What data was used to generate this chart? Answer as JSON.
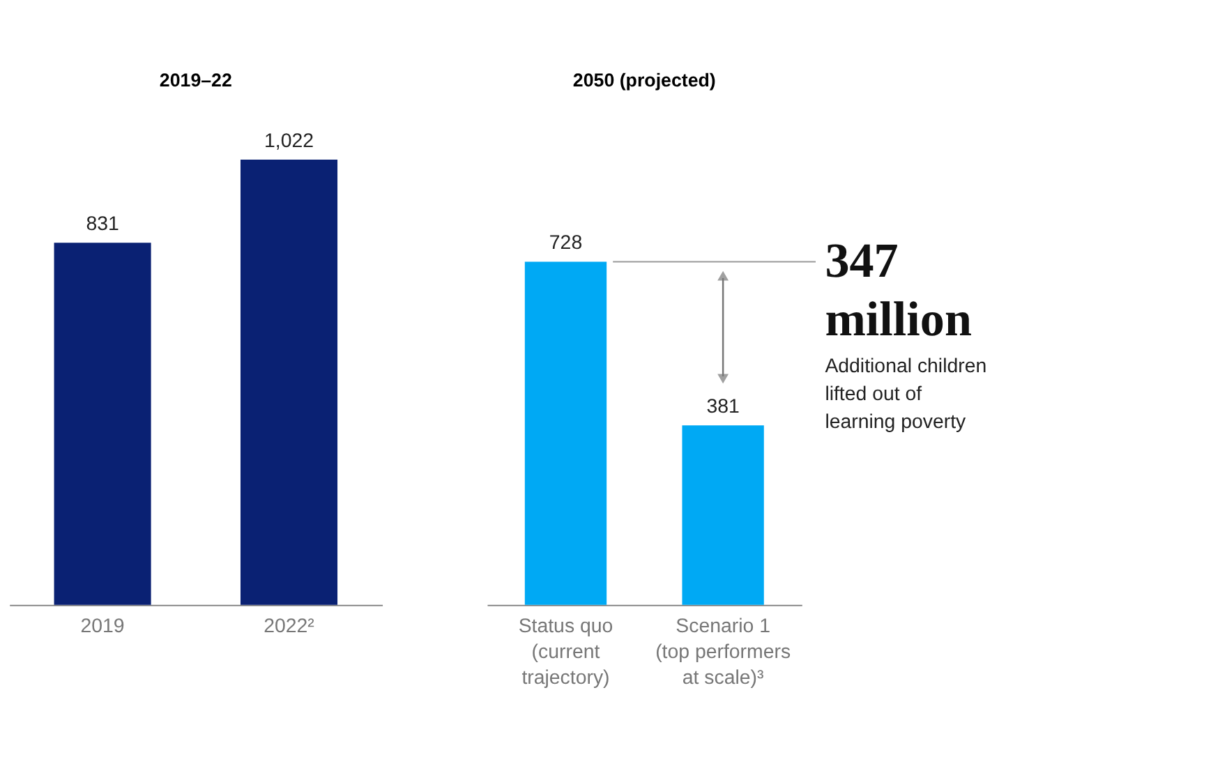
{
  "chart_data": [
    {
      "type": "bar",
      "title": "2019–22",
      "categories": [
        "2019",
        "2022²"
      ],
      "values": [
        831,
        1022
      ],
      "value_labels": [
        "831",
        "1,022"
      ],
      "colors": [
        "#0a2173",
        "#0a2173"
      ],
      "tick_labels": "x"
    },
    {
      "type": "bar",
      "title": "2050 (projected)",
      "categories": [
        "Status quo\n(current\ntrajectory)",
        "Scenario 1\n(top performers\nat scale)³"
      ],
      "values": [
        728,
        381
      ],
      "colors": [
        "#00a9f4",
        "#00a9f4"
      ],
      "data_labels": true,
      "tick_labels": "x",
      "ref_lines": [
        {
          "axis": "y",
          "value": 728,
          "color": "#999999"
        }
      ],
      "annotations": [
        "347\nmillion",
        "Additional children\nlifted out of\nlearning poverty"
      ]
    }
  ]
}
